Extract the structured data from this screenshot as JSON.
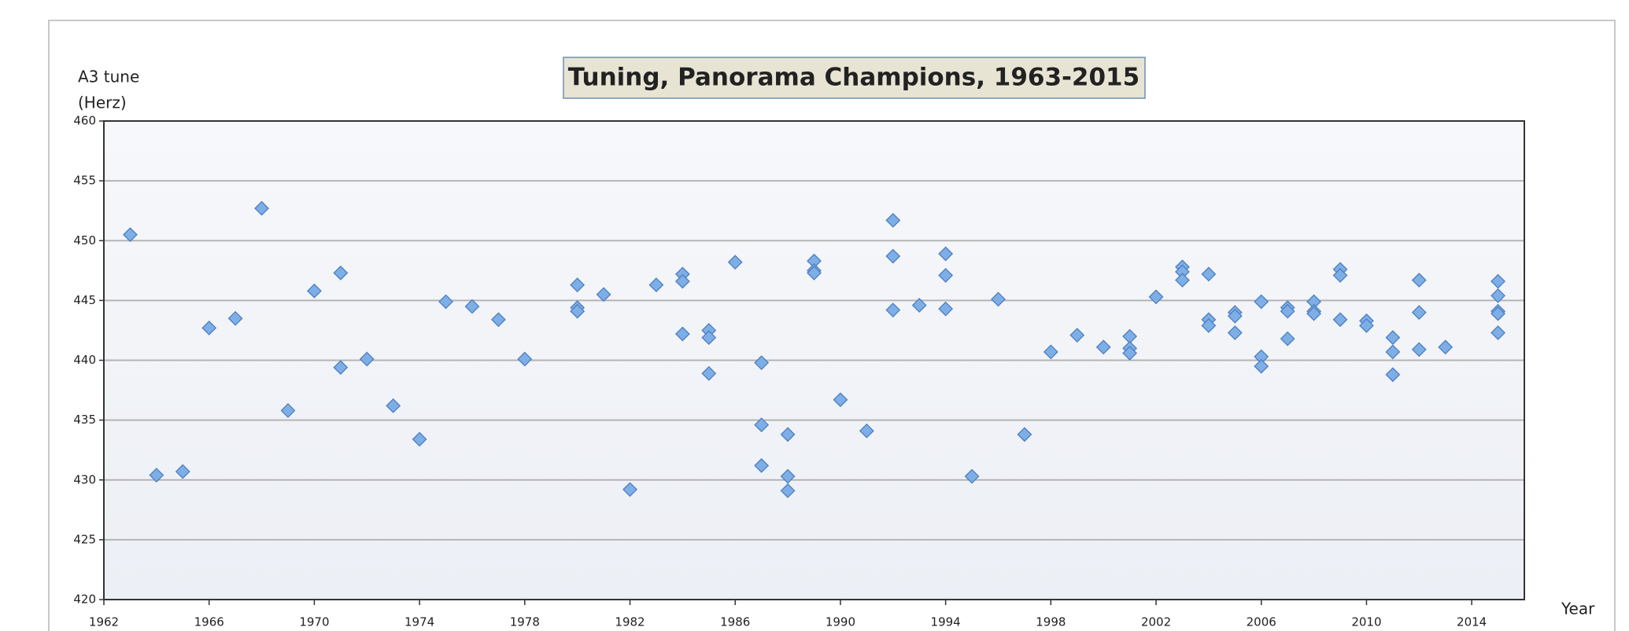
{
  "chart_data": {
    "type": "scatter",
    "title": "Tuning, Panorama Champions, 1963-2015",
    "y_label": [
      "A3  tune",
      "(Herz)"
    ],
    "x_label": "Year",
    "x": [
      1963,
      1964,
      1965,
      1966,
      1967,
      1968,
      1969,
      1970,
      1971,
      1971,
      1972,
      1973,
      1974,
      1975,
      1976,
      1977,
      1978,
      1980,
      1980,
      1980,
      1981,
      1982,
      1983,
      1984,
      1984,
      1984,
      1985,
      1985,
      1985,
      1986,
      1987,
      1987,
      1987,
      1988,
      1988,
      1988,
      1989,
      1989,
      1989,
      1990,
      1991,
      1992,
      1992,
      1992,
      1993,
      1994,
      1994,
      1994,
      1995,
      1996,
      1997,
      1998,
      1999,
      2000,
      2001,
      2001,
      2001,
      2002,
      2003,
      2003,
      2003,
      2004,
      2004,
      2004,
      2005,
      2005,
      2005,
      2006,
      2006,
      2006,
      2007,
      2007,
      2007,
      2008,
      2008,
      2008,
      2009,
      2009,
      2009,
      2010,
      2010,
      2011,
      2011,
      2011,
      2012,
      2012,
      2012,
      2013,
      2015,
      2015,
      2015,
      2015,
      2015
    ],
    "values": [
      450.5,
      430.4,
      430.7,
      442.7,
      443.5,
      452.7,
      435.8,
      445.8,
      447.3,
      439.4,
      440.1,
      436.2,
      433.4,
      444.9,
      444.5,
      443.4,
      440.1,
      446.3,
      444.4,
      444.1,
      445.5,
      429.2,
      446.3,
      447.2,
      446.6,
      442.2,
      442.5,
      441.9,
      438.9,
      448.2,
      439.8,
      434.6,
      431.2,
      433.8,
      430.3,
      429.1,
      448.3,
      447.5,
      447.3,
      436.7,
      434.1,
      451.7,
      448.7,
      444.2,
      444.6,
      448.9,
      447.1,
      444.3,
      430.3,
      445.1,
      433.8,
      440.7,
      442.1,
      441.1,
      442.0,
      441.0,
      440.6,
      445.3,
      447.8,
      447.4,
      446.7,
      447.2,
      443.4,
      442.9,
      444.0,
      443.7,
      442.3,
      444.9,
      440.3,
      439.5,
      444.4,
      444.1,
      441.8,
      444.9,
      444.1,
      443.9,
      447.6,
      447.1,
      443.4,
      443.3,
      442.9,
      441.9,
      440.7,
      438.8,
      446.7,
      444.0,
      440.9,
      441.1,
      446.6,
      445.4,
      444.1,
      443.9,
      442.3
    ],
    "color": "#7eaee6",
    "xlim": [
      1962,
      2016
    ],
    "xticks": [
      1962,
      1966,
      1970,
      1974,
      1978,
      1982,
      1986,
      1990,
      1994,
      1998,
      2002,
      2006,
      2010,
      2014
    ],
    "ylim": [
      420,
      460
    ],
    "yticks": [
      420,
      425,
      430,
      435,
      440,
      445,
      450,
      455,
      460
    ],
    "grid": true
  }
}
